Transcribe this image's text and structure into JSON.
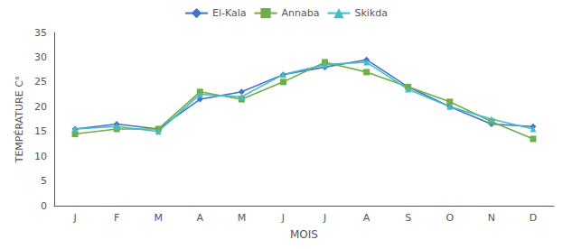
{
  "chart_data": {
    "type": "line",
    "categories": [
      "J",
      "F",
      "M",
      "A",
      "M",
      "J",
      "J",
      "A",
      "S",
      "O",
      "N",
      "D"
    ],
    "series": [
      {
        "name": "El-Kala",
        "color": "#4472C4",
        "marker": "diamond",
        "values": [
          15.5,
          16.5,
          15.5,
          21.5,
          23.0,
          26.5,
          28.0,
          29.5,
          24.0,
          20.0,
          16.5,
          16.0
        ]
      },
      {
        "name": "Annaba",
        "color": "#70AD47",
        "marker": "square",
        "values": [
          14.5,
          15.5,
          15.5,
          23.0,
          21.5,
          25.0,
          29.0,
          27.0,
          24.0,
          21.0,
          17.0,
          13.5
        ]
      },
      {
        "name": "Skikda",
        "color": "#44BCC8",
        "marker": "triangle",
        "values": [
          15.5,
          16.0,
          15.0,
          22.5,
          22.0,
          26.5,
          28.5,
          29.0,
          23.5,
          20.0,
          17.5,
          15.5
        ]
      }
    ],
    "xlabel": "MOIS",
    "ylabel": "TEMPÉRATURE C°",
    "ylim": [
      0,
      35
    ],
    "yticks": [
      0,
      5,
      10,
      15,
      20,
      25,
      30,
      35
    ],
    "grid": false,
    "legend": "top"
  }
}
